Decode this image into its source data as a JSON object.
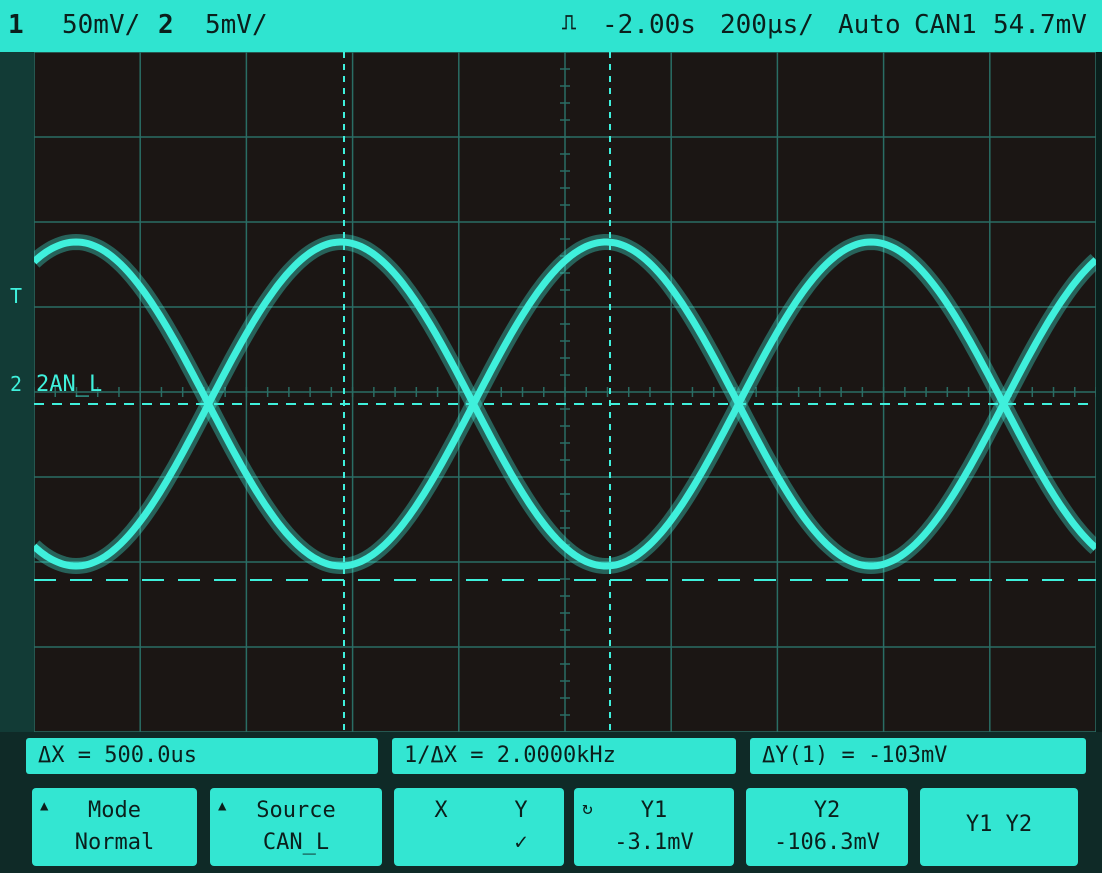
{
  "status": {
    "ch1_num": "1",
    "ch1_scale": "50mV/",
    "ch2_num": "2",
    "ch2_scale": "5mV/",
    "trigger_icon": "trigger-edge-icon",
    "time_delay": "-2.00s",
    "time_scale": "200µs/",
    "mode": "Auto",
    "trigger_source": "CAN1",
    "trigger_level": "54.7mV"
  },
  "screen": {
    "trace_color": "#3ff0dc",
    "background_color": "#1b1614",
    "t_marker": "T",
    "ch_marker": "2",
    "waveform_label": "2AN_L"
  },
  "measurements": {
    "delta_x": "ΔX = 500.0us",
    "inv_delta_x": "1/ΔX = 2.0000kHz",
    "delta_y": "ΔY(1) = -103mV"
  },
  "softkeys": {
    "mode_title": "Mode",
    "mode_value": "Normal",
    "source_title": "Source",
    "source_value": "CAN_L",
    "x_label": "X",
    "y_label": "Y",
    "check": "✓",
    "y1_title": "Y1",
    "y1_value": "-3.1mV",
    "y2_title": "Y2",
    "y2_value": "-106.3mV",
    "y1y2_label": "Y1 Y2"
  }
}
